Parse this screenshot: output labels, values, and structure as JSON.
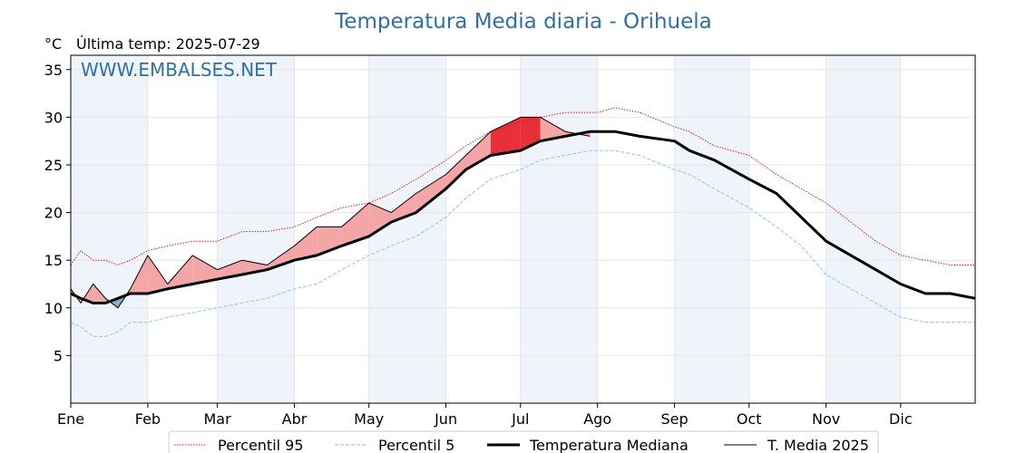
{
  "chart_data": {
    "type": "line",
    "title": "Temperatura Media diaria - Orihuela",
    "unit_label": "°C",
    "subtitle": "Última temp: 2025-07-29",
    "watermark": "WWW.EMBALSES.NET",
    "ylim": [
      0,
      36.5
    ],
    "xlim": [
      1,
      365
    ],
    "y_ticks": [
      5,
      10,
      15,
      20,
      25,
      30,
      35
    ],
    "x_ticks": [
      {
        "day": 1,
        "label": "Ene"
      },
      {
        "day": 32,
        "label": "Feb"
      },
      {
        "day": 60,
        "label": "Mar"
      },
      {
        "day": 91,
        "label": "Abr"
      },
      {
        "day": 121,
        "label": "May"
      },
      {
        "day": 152,
        "label": "Jun"
      },
      {
        "day": 182,
        "label": "Jul"
      },
      {
        "day": 213,
        "label": "Ago"
      },
      {
        "day": 244,
        "label": "Sep"
      },
      {
        "day": 274,
        "label": "Oct"
      },
      {
        "day": 305,
        "label": "Nov"
      },
      {
        "day": 335,
        "label": "Dic"
      }
    ],
    "shaded_months": [
      [
        1,
        32
      ],
      [
        60,
        91
      ],
      [
        121,
        152
      ],
      [
        182,
        213
      ],
      [
        244,
        274
      ],
      [
        305,
        335
      ]
    ],
    "grid": true,
    "legend_position": "bottom",
    "x": [
      1,
      5,
      10,
      15,
      20,
      25,
      32,
      40,
      50,
      60,
      70,
      80,
      91,
      100,
      110,
      121,
      130,
      140,
      152,
      160,
      170,
      182,
      190,
      200,
      210,
      213,
      220,
      230,
      244,
      250,
      260,
      274,
      285,
      295,
      305,
      315,
      325,
      335,
      345,
      355,
      365
    ],
    "series": [
      {
        "name": "Percentil 95",
        "color": "#e31a1c",
        "style": "dotted",
        "values": [
          14.5,
          16.0,
          15.0,
          15.0,
          14.5,
          15.0,
          16.0,
          16.5,
          17.0,
          17.0,
          18.0,
          18.0,
          18.5,
          19.5,
          20.5,
          21.0,
          22.0,
          23.5,
          25.5,
          27.0,
          28.5,
          29.5,
          30.0,
          30.5,
          30.5,
          30.5,
          31.0,
          30.5,
          29.0,
          28.5,
          27.0,
          26.0,
          24.0,
          22.5,
          21.0,
          19.0,
          17.0,
          15.5,
          15.0,
          14.5,
          14.5
        ]
      },
      {
        "name": "Percentil 5",
        "color": "#9ecfe0",
        "style": "dashed",
        "values": [
          8.5,
          8.0,
          7.0,
          7.0,
          7.5,
          8.5,
          8.5,
          9.0,
          9.5,
          10.0,
          10.5,
          11.0,
          12.0,
          12.5,
          14.0,
          15.5,
          16.5,
          17.5,
          19.5,
          21.5,
          23.5,
          24.5,
          25.5,
          26.0,
          26.5,
          26.5,
          26.5,
          26.0,
          24.5,
          24.0,
          22.5,
          20.5,
          18.5,
          16.5,
          13.5,
          12.0,
          10.5,
          9.0,
          8.5,
          8.5,
          8.5
        ]
      },
      {
        "name": "Temperatura Mediana",
        "color": "#000000",
        "style": "bold",
        "values": [
          11.5,
          11.0,
          10.5,
          10.5,
          11.0,
          11.5,
          11.5,
          12.0,
          12.5,
          13.0,
          13.5,
          14.0,
          15.0,
          15.5,
          16.5,
          17.5,
          19.0,
          20.0,
          22.5,
          24.5,
          26.0,
          26.5,
          27.5,
          28.0,
          28.5,
          28.5,
          28.5,
          28.0,
          27.5,
          26.5,
          25.5,
          23.5,
          22.0,
          19.5,
          17.0,
          15.5,
          14.0,
          12.5,
          11.5,
          11.5,
          11.0
        ]
      },
      {
        "name": "T. Media 2025",
        "color": "#000000",
        "style": "thin",
        "values": [
          12.0,
          10.5,
          12.5,
          11.0,
          10.0,
          12.0,
          15.5,
          12.5,
          15.5,
          14.0,
          15.0,
          14.5,
          16.5,
          18.5,
          18.5,
          21.0,
          20.0,
          22.0,
          24.0,
          26.0,
          28.5,
          30.0,
          30.0,
          28.5,
          28.0,
          null,
          null,
          null,
          null,
          null,
          null,
          null,
          null,
          null,
          null,
          null,
          null,
          null,
          null,
          null,
          null
        ]
      }
    ],
    "fill_colors": {
      "above_median": "#f4a6a6",
      "above_p95": "#e8303a",
      "below_median": "#8aaecb",
      "below_p5": "#2b5d8a"
    }
  }
}
